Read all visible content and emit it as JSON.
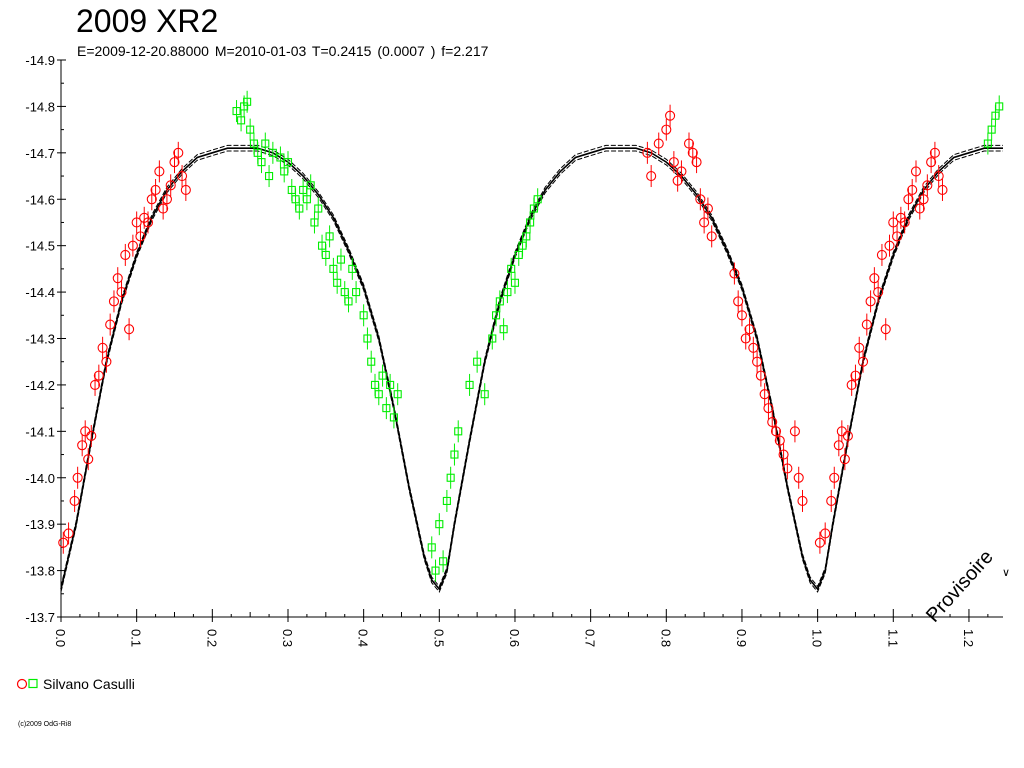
{
  "title": "2009 XR2",
  "subtitle": "E=2009-12-20.88000    M=2010-01-03    T=0.2415 (0.0007 )    f=2.217",
  "watermark": "Provisoire",
  "edge_mark": "∨",
  "copyright": "(c)2009 OdG-Ri8",
  "legend": {
    "label": "Silvano Casulli"
  },
  "colors": {
    "series_red": "#ff0000",
    "series_green": "#00ee00",
    "model": "#000000"
  },
  "chart_data": {
    "type": "scatter",
    "title": "2009 XR2",
    "xlabel": "",
    "ylabel": "",
    "xlim": [
      0.0,
      1.245
    ],
    "ylim": [
      -14.9,
      -13.7
    ],
    "y_inverted": true,
    "x_ticks": [
      "0.0",
      "0.1",
      "0.2",
      "0.3",
      "0.4",
      "0.5",
      "0.6",
      "0.7",
      "0.8",
      "0.9",
      "1.0",
      "1.1",
      "1.2"
    ],
    "y_ticks": [
      "-14.9",
      "-14.8",
      "-14.7",
      "-14.6",
      "-14.5",
      "-14.4",
      "-14.3",
      "-14.2",
      "-14.1",
      "-14.0",
      "-13.9",
      "-13.8",
      "-13.7"
    ],
    "grid": false,
    "legend_position": "bottom-left",
    "model_curve": {
      "name": "",
      "x": [
        0.0,
        0.02,
        0.04,
        0.06,
        0.08,
        0.1,
        0.12,
        0.14,
        0.16,
        0.18,
        0.2,
        0.22,
        0.24,
        0.26,
        0.28,
        0.3,
        0.32,
        0.34,
        0.36,
        0.38,
        0.4,
        0.42,
        0.44,
        0.46,
        0.48,
        0.49,
        0.5,
        0.51,
        0.52,
        0.54,
        0.56,
        0.58,
        0.6,
        0.62,
        0.64,
        0.66,
        0.68,
        0.7,
        0.72,
        0.74,
        0.76,
        0.78,
        0.8,
        0.82,
        0.84,
        0.86,
        0.88,
        0.9,
        0.92,
        0.94,
        0.96,
        0.98,
        0.99,
        1.0,
        1.01,
        1.02,
        1.04,
        1.06,
        1.08,
        1.1,
        1.12,
        1.14,
        1.16,
        1.18,
        1.2,
        1.22,
        1.245
      ],
      "y": [
        -13.76,
        -13.9,
        -14.08,
        -14.25,
        -14.38,
        -14.48,
        -14.56,
        -14.62,
        -14.66,
        -14.69,
        -14.7,
        -14.71,
        -14.71,
        -14.71,
        -14.7,
        -14.68,
        -14.65,
        -14.61,
        -14.56,
        -14.49,
        -14.41,
        -14.3,
        -14.15,
        -13.98,
        -13.83,
        -13.78,
        -13.76,
        -13.8,
        -13.9,
        -14.08,
        -14.25,
        -14.38,
        -14.48,
        -14.56,
        -14.62,
        -14.66,
        -14.69,
        -14.7,
        -14.71,
        -14.71,
        -14.71,
        -14.7,
        -14.68,
        -14.65,
        -14.61,
        -14.56,
        -14.49,
        -14.41,
        -14.3,
        -14.15,
        -13.98,
        -13.83,
        -13.78,
        -13.76,
        -13.8,
        -13.9,
        -14.08,
        -14.25,
        -14.38,
        -14.48,
        -14.56,
        -14.62,
        -14.66,
        -14.69,
        -14.7,
        -14.71,
        -14.71
      ]
    },
    "series": [
      {
        "name": "",
        "marker": "circle",
        "color": "#ff0000",
        "x": [
          0.003,
          0.01,
          0.018,
          0.022,
          0.028,
          0.032,
          0.036,
          0.04,
          0.045,
          0.05,
          0.055,
          0.06,
          0.065,
          0.07,
          0.075,
          0.08,
          0.085,
          0.09,
          0.095,
          0.1,
          0.105,
          0.11,
          0.115,
          0.12,
          0.125,
          0.13,
          0.135,
          0.14,
          0.145,
          0.15,
          0.155,
          0.16,
          0.165,
          0.775,
          0.78,
          0.79,
          0.8,
          0.805,
          0.81,
          0.815,
          0.82,
          0.83,
          0.835,
          0.84,
          0.845,
          0.85,
          0.855,
          0.86,
          0.89,
          0.895,
          0.9,
          0.905,
          0.91,
          0.915,
          0.92,
          0.925,
          0.93,
          0.935,
          0.94,
          0.945,
          0.95,
          0.955,
          0.96,
          0.97,
          0.975,
          0.98,
          1.003,
          1.01,
          1.018,
          1.022,
          1.028,
          1.032,
          1.036,
          1.04,
          1.045,
          1.05,
          1.055,
          1.06,
          1.065,
          1.07,
          1.075,
          1.08,
          1.085,
          1.09,
          1.095,
          1.1,
          1.105,
          1.11,
          1.115,
          1.12,
          1.125,
          1.13,
          1.135,
          1.14,
          1.145,
          1.15,
          1.155,
          1.16,
          1.165
        ],
        "y": [
          -13.86,
          -13.88,
          -13.95,
          -14.0,
          -14.07,
          -14.1,
          -14.04,
          -14.09,
          -14.2,
          -14.22,
          -14.28,
          -14.25,
          -14.33,
          -14.38,
          -14.43,
          -14.4,
          -14.48,
          -14.32,
          -14.5,
          -14.55,
          -14.52,
          -14.56,
          -14.55,
          -14.6,
          -14.62,
          -14.66,
          -14.58,
          -14.6,
          -14.63,
          -14.68,
          -14.7,
          -14.65,
          -14.62,
          -14.7,
          -14.65,
          -14.72,
          -14.75,
          -14.78,
          -14.68,
          -14.64,
          -14.66,
          -14.72,
          -14.7,
          -14.68,
          -14.6,
          -14.55,
          -14.58,
          -14.52,
          -14.44,
          -14.38,
          -14.35,
          -14.3,
          -14.32,
          -14.28,
          -14.25,
          -14.22,
          -14.18,
          -14.15,
          -14.12,
          -14.1,
          -14.08,
          -14.05,
          -14.02,
          -14.1,
          -14.0,
          -13.95,
          -13.86,
          -13.88,
          -13.95,
          -14.0,
          -14.07,
          -14.1,
          -14.04,
          -14.09,
          -14.2,
          -14.22,
          -14.28,
          -14.25,
          -14.33,
          -14.38,
          -14.43,
          -14.4,
          -14.48,
          -14.32,
          -14.5,
          -14.55,
          -14.52,
          -14.56,
          -14.55,
          -14.6,
          -14.62,
          -14.66,
          -14.58,
          -14.6,
          -14.63,
          -14.68,
          -14.7,
          -14.65,
          -14.62
        ]
      },
      {
        "name": "",
        "marker": "square",
        "color": "#00ee00",
        "x": [
          0.232,
          0.238,
          0.242,
          0.246,
          0.25,
          0.255,
          0.26,
          0.265,
          0.27,
          0.275,
          0.28,
          0.29,
          0.295,
          0.3,
          0.305,
          0.31,
          0.315,
          0.32,
          0.325,
          0.33,
          0.335,
          0.34,
          0.345,
          0.35,
          0.355,
          0.36,
          0.365,
          0.37,
          0.375,
          0.38,
          0.385,
          0.39,
          0.4,
          0.405,
          0.41,
          0.415,
          0.42,
          0.425,
          0.43,
          0.435,
          0.44,
          0.445,
          0.49,
          0.495,
          0.5,
          0.505,
          0.51,
          0.515,
          0.52,
          0.525,
          0.54,
          0.55,
          0.56,
          0.57,
          0.575,
          0.58,
          0.585,
          0.59,
          0.595,
          0.6,
          0.605,
          0.61,
          0.615,
          0.62,
          0.625,
          0.63,
          1.225,
          1.23,
          1.235,
          1.24
        ],
        "y": [
          -14.79,
          -14.77,
          -14.8,
          -14.81,
          -14.75,
          -14.72,
          -14.7,
          -14.68,
          -14.72,
          -14.65,
          -14.7,
          -14.69,
          -14.66,
          -14.68,
          -14.62,
          -14.6,
          -14.58,
          -14.62,
          -14.6,
          -14.63,
          -14.55,
          -14.58,
          -14.5,
          -14.48,
          -14.52,
          -14.45,
          -14.42,
          -14.47,
          -14.4,
          -14.38,
          -14.45,
          -14.4,
          -14.35,
          -14.3,
          -14.25,
          -14.2,
          -14.18,
          -14.22,
          -14.15,
          -14.2,
          -14.13,
          -14.18,
          -13.85,
          -13.8,
          -13.9,
          -13.82,
          -13.95,
          -14.0,
          -14.05,
          -14.1,
          -14.2,
          -14.25,
          -14.18,
          -14.3,
          -14.35,
          -14.38,
          -14.32,
          -14.4,
          -14.45,
          -14.42,
          -14.48,
          -14.5,
          -14.52,
          -14.55,
          -14.58,
          -14.6,
          -14.72,
          -14.75,
          -14.78,
          -14.8
        ]
      }
    ]
  }
}
